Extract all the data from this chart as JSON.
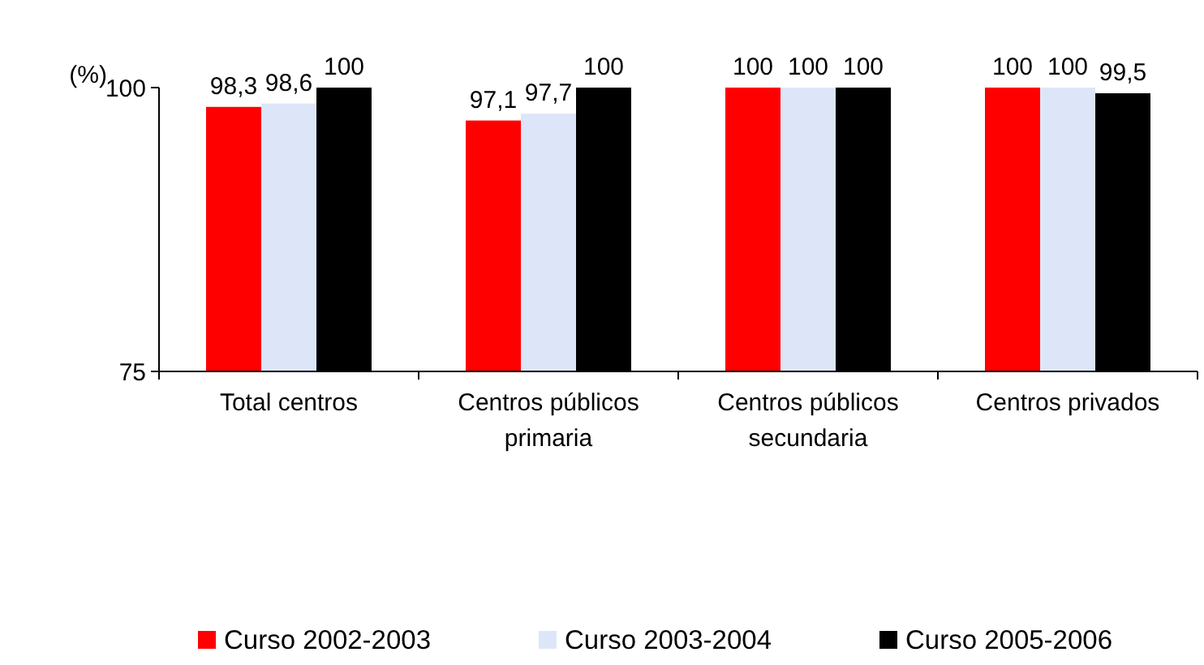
{
  "chart_data": {
    "type": "bar",
    "ylabel": "(%)",
    "categories": [
      "Total centros",
      "Centros públicos primaria",
      "Centros públicos secundaria",
      "Centros privados"
    ],
    "series": [
      {
        "name": "Curso 2002-2003",
        "color": "#ff0000",
        "values": [
          98.3,
          97.1,
          100,
          100
        ],
        "value_labels": [
          "98,3",
          "97,1",
          "100",
          "100"
        ]
      },
      {
        "name": "Curso 2003-2004",
        "color": "#dde6f8",
        "values": [
          98.6,
          97.7,
          100,
          100
        ],
        "value_labels": [
          "98,6",
          "97,7",
          "100",
          "100"
        ]
      },
      {
        "name": "Curso 2005-2006",
        "color": "#000000",
        "values": [
          100,
          100,
          100,
          99.5
        ],
        "value_labels": [
          "100",
          "100",
          "100",
          "99,5"
        ]
      }
    ],
    "ylim": [
      75,
      100
    ],
    "yticks": [
      75,
      100
    ],
    "grid": false,
    "legend": "bottom"
  }
}
